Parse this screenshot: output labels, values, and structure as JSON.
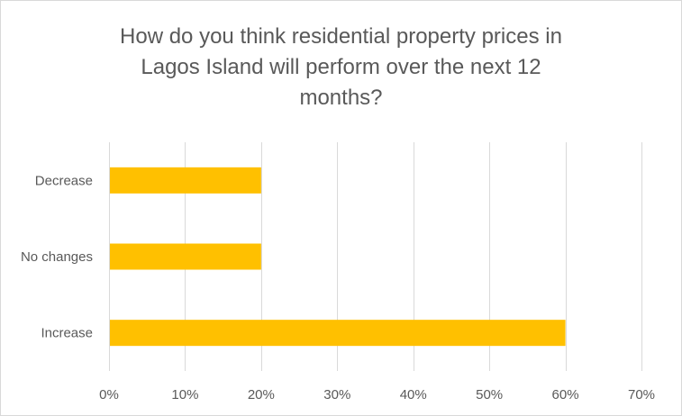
{
  "chart_data": {
    "type": "bar",
    "orientation": "horizontal",
    "title_lines": [
      "How do you think residential property prices in",
      "Lagos Island will perform over the next 12",
      "months?"
    ],
    "categories": [
      "Decrease",
      "No changes",
      "Increase"
    ],
    "values": [
      20,
      20,
      60
    ],
    "value_unit": "%",
    "xlim": [
      0,
      70
    ],
    "xticks": [
      0,
      10,
      20,
      30,
      40,
      50,
      60,
      70
    ],
    "xtick_labels": [
      "0%",
      "10%",
      "20%",
      "30%",
      "40%",
      "50%",
      "60%",
      "70%"
    ],
    "xlabel": "",
    "ylabel": "",
    "grid": "vertical",
    "legend": "none",
    "bar_color": "#FFC000",
    "grid_color": "#d9d9d9"
  }
}
